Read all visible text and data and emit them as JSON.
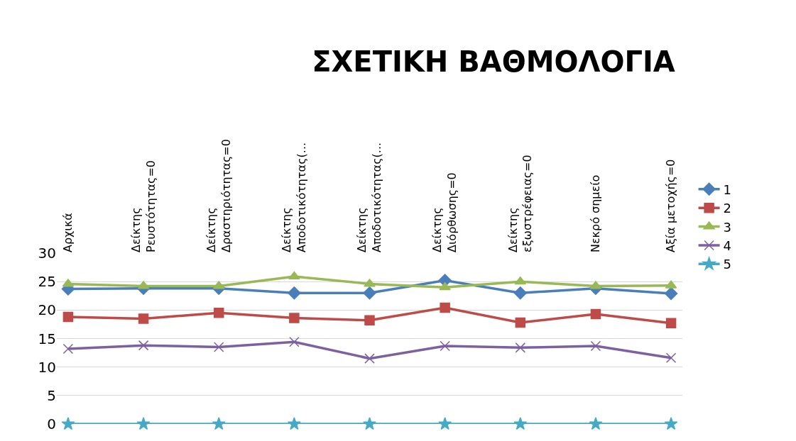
{
  "chart_data": {
    "type": "line",
    "title": "ΣΧΕΤΙΚΗ ΒΑΘΜΟΛΟΓΙΑ",
    "categories": [
      "Αρχικά",
      "Δείκτης\nΡευστότητας=0",
      "Δείκτης\nΔραστηριότητας=0",
      "Δείκτης\nΑποδοτικότητας(...",
      "Δείκτης\nΑποδοτικότητας(...",
      "Δείκτης\nΔιόρθωσης=0",
      "Δείκτης\nεξωστρέφειας=0",
      "Νεκρό σημείο",
      "Αξία μετοχής=0"
    ],
    "series": [
      {
        "name": "1",
        "color": "#4a7ebb",
        "marker": "diamond",
        "values": [
          23.7,
          23.8,
          23.8,
          23.0,
          23.0,
          25.2,
          23.0,
          23.8,
          22.9
        ]
      },
      {
        "name": "2",
        "color": "#be4b48",
        "marker": "square",
        "values": [
          18.8,
          18.5,
          19.5,
          18.6,
          18.2,
          20.4,
          17.8,
          19.3,
          17.7
        ]
      },
      {
        "name": "3",
        "color": "#98b954",
        "marker": "triangle",
        "values": [
          24.6,
          24.2,
          24.2,
          25.9,
          24.6,
          24.0,
          25.0,
          24.2,
          24.3
        ]
      },
      {
        "name": "4",
        "color": "#7d60a0",
        "marker": "cross",
        "values": [
          13.2,
          13.8,
          13.5,
          14.4,
          11.5,
          13.7,
          13.4,
          13.7,
          11.6
        ]
      },
      {
        "name": "5",
        "color": "#46aac5",
        "marker": "star",
        "values": [
          0,
          0,
          0,
          0,
          0,
          0,
          0,
          0,
          0
        ]
      }
    ],
    "ylim": [
      0,
      30
    ],
    "yticks": [
      0,
      5,
      10,
      15,
      20,
      25,
      30
    ],
    "grid": "y",
    "legend": "right",
    "line_style": "solid"
  }
}
